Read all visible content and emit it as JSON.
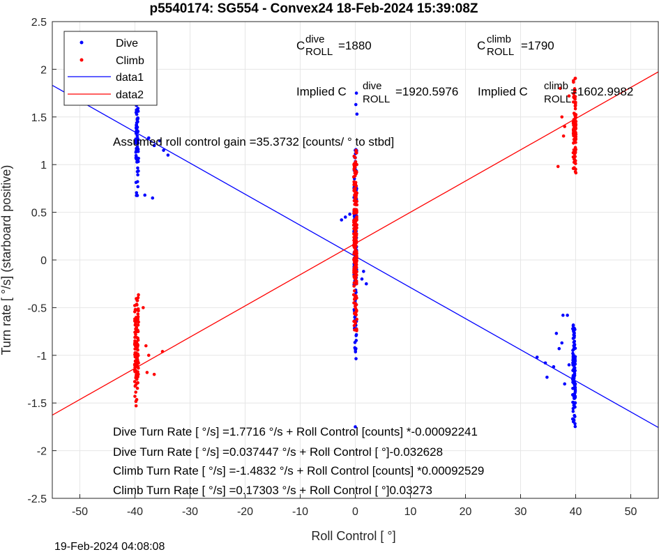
{
  "chart_data": {
    "type": "scatter",
    "title": "p5540174: SG554 - Convex24 18-Feb-2024 15:39:08Z",
    "xlabel": "Roll Control [   °]",
    "ylabel": "Turn rate [   °/s] (starboard positive)",
    "xlim": [
      -55,
      55
    ],
    "ylim": [
      -2.5,
      2.5
    ],
    "grid": true,
    "legend_placement": "top-left",
    "x_ticks": [
      -50,
      -40,
      -30,
      -20,
      -10,
      0,
      10,
      20,
      30,
      40,
      50
    ],
    "y_ticks": [
      -2.5,
      -2,
      -1.5,
      -1,
      -0.5,
      0,
      0.5,
      1,
      1.5,
      2,
      2.5
    ],
    "x_tick_labels": [
      "-50",
      "-40",
      "-30",
      "-20",
      "-10",
      "0",
      "10",
      "20",
      "30",
      "40",
      "50"
    ],
    "y_tick_labels": [
      "-2.5",
      "-2",
      "-1.5",
      "-1",
      "-0.5",
      "0",
      "0.5",
      "1",
      "1.5",
      "2",
      "2.5"
    ],
    "legend": [
      "Dive",
      "Climb",
      "data1",
      "data2"
    ],
    "colors": {
      "dive": "#0000ff",
      "climb": "#ff0000"
    },
    "fit_lines": [
      {
        "name": "data1",
        "color": "#0000ff",
        "intercept": 0.037447,
        "slope": -0.032628
      },
      {
        "name": "data2",
        "color": "#ff0000",
        "intercept": 0.17303,
        "slope": 0.03273
      }
    ],
    "series": [
      {
        "name": "Dive",
        "color": "#0000ff",
        "clusters": [
          {
            "x_center": -39.6,
            "x_spread": 0.25,
            "y_min": 0.67,
            "y_max": 1.83,
            "count": 80
          },
          {
            "x_center": 0.0,
            "x_spread": 0.25,
            "y_min": -1.04,
            "y_max": 1.2,
            "count": 150
          },
          {
            "x_center": 39.7,
            "x_spread": 0.25,
            "y_min": -1.75,
            "y_max": -0.65,
            "count": 110
          }
        ],
        "extra_points": [
          [
            -37.5,
            1.28
          ],
          [
            -36.5,
            1.2
          ],
          [
            -35.5,
            1.25
          ],
          [
            -34.8,
            1.15
          ],
          [
            -34.0,
            1.1
          ],
          [
            -38.2,
            0.68
          ],
          [
            -36.8,
            0.65
          ],
          [
            -2.5,
            0.42
          ],
          [
            -1.8,
            0.45
          ],
          [
            -1.0,
            0.48
          ],
          [
            1.5,
            -0.12
          ],
          [
            2.0,
            -0.25
          ],
          [
            1.2,
            -0.2
          ],
          [
            0.2,
            1.75
          ],
          [
            0.3,
            1.53
          ],
          [
            0.1,
            1.63
          ],
          [
            0.0,
            -1.75
          ],
          [
            33.0,
            -1.02
          ],
          [
            34.5,
            -1.08
          ],
          [
            36.0,
            -1.12
          ],
          [
            34.8,
            -1.23
          ],
          [
            36.5,
            -0.77
          ],
          [
            37.7,
            -0.58
          ],
          [
            38.5,
            -0.58
          ],
          [
            37.0,
            -0.93
          ],
          [
            37.5,
            -0.87
          ],
          [
            38.0,
            -1.3
          ],
          [
            38.8,
            -1.1
          ]
        ]
      },
      {
        "name": "Climb",
        "color": "#ff0000",
        "clusters": [
          {
            "x_center": -39.7,
            "x_spread": 0.35,
            "y_min": -1.55,
            "y_max": -0.36,
            "count": 120
          },
          {
            "x_center": 0.0,
            "x_spread": 0.3,
            "y_min": -0.75,
            "y_max": 1.15,
            "count": 200
          },
          {
            "x_center": 39.8,
            "x_spread": 0.25,
            "y_min": 0.83,
            "y_max": 1.93,
            "count": 90
          }
        ],
        "extra_points": [
          [
            -38.0,
            -0.9
          ],
          [
            -37.5,
            -1.0
          ],
          [
            -37.8,
            -1.18
          ],
          [
            -36.5,
            -1.2
          ],
          [
            -35.0,
            -0.96
          ],
          [
            -38.5,
            -0.5
          ],
          [
            37.5,
            1.5
          ],
          [
            37.8,
            1.3
          ],
          [
            38.0,
            1.4
          ],
          [
            36.8,
            0.98
          ],
          [
            37.2,
            1.8
          ],
          [
            38.8,
            1.72
          ]
        ]
      }
    ],
    "annotations": {
      "c_dive_main": "C",
      "c_dive_sup": "dive",
      "c_dive_sub": "ROLL",
      "c_dive_val": "=1880",
      "c_climb_main": "C",
      "c_climb_sup": "climb",
      "c_climb_sub": "ROLL",
      "c_climb_val": "=1790",
      "implied_dive_main": "Implied C",
      "implied_dive_sup": "dive",
      "implied_dive_sub": "ROLL",
      "implied_dive_val": "=1920.5976",
      "implied_climb_main": "Implied C",
      "implied_climb_sup": "climb",
      "implied_climb_sub": "ROLL",
      "implied_climb_val": "=1602.9982",
      "gain_text": "Assumed roll control gain =35.3732 [counts/          ° to stbd]",
      "eq1": "Dive Turn Rate [    °/s] =1.7716    °/s + Roll Control [counts] *-0.00092241",
      "eq2": "Dive Turn Rate [    °/s] =0.037447    °/s + Roll Control [    °]-0.032628",
      "eq3": "Climb Turn Rate [    °/s] =-1.4832    °/s + Roll Control [counts] *0.00092529",
      "eq4": "Climb Turn Rate [    °/s] =0.17303    °/s + Roll Control [    °]0.03273"
    }
  },
  "timestamp": "19-Feb-2024 04:08:08"
}
